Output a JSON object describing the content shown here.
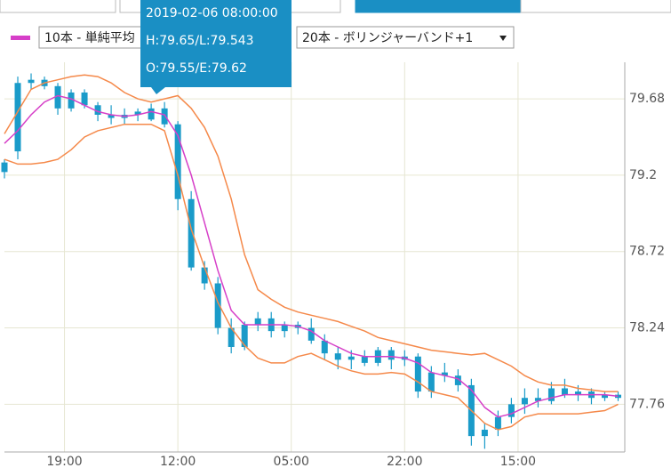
{
  "chart_data": {
    "type": "candlestick",
    "x": [
      0,
      2,
      4,
      6,
      8,
      10,
      12,
      14,
      16,
      18,
      20,
      22,
      24,
      26,
      28,
      30,
      32,
      34,
      36,
      38,
      40,
      42,
      44,
      46,
      48,
      50,
      52,
      54,
      56,
      58,
      60,
      62,
      64,
      66,
      68,
      70,
      72,
      74,
      76,
      78,
      80,
      82,
      84,
      86,
      88,
      90,
      92
    ],
    "xlim": [
      0,
      93
    ],
    "xticks": [
      {
        "value": 9,
        "label": "19:00"
      },
      {
        "value": 26,
        "label": "12:00"
      },
      {
        "value": 43,
        "label": "05:00"
      },
      {
        "value": 60,
        "label": "22:00"
      },
      {
        "value": 77,
        "label": "15:00"
      }
    ],
    "ylim": [
      77.46,
      79.91
    ],
    "yticks": [
      79.68,
      79.2,
      78.72,
      78.24,
      77.76
    ],
    "grid": true,
    "candle_color": "#1a9bc9",
    "open": [
      79.22,
      79.35,
      79.78,
      79.8,
      79.76,
      79.62,
      79.72,
      79.64,
      79.58,
      79.56,
      79.58,
      79.55,
      79.62,
      79.52,
      79.05,
      78.62,
      78.52,
      78.24,
      78.12,
      78.26,
      78.3,
      78.22,
      78.26,
      78.24,
      78.16,
      78.08,
      78.04,
      78.06,
      78.02,
      78.1,
      78.04,
      78.06,
      77.84,
      77.96,
      77.94,
      77.88,
      77.56,
      77.6,
      77.68,
      77.76,
      77.8,
      77.78,
      77.86,
      77.82,
      77.84,
      77.8,
      77.82
    ],
    "high": [
      79.3,
      79.82,
      79.84,
      79.82,
      79.78,
      79.74,
      79.74,
      79.66,
      79.64,
      79.62,
      79.62,
      79.65,
      79.66,
      79.54,
      79.1,
      78.66,
      78.56,
      78.3,
      78.28,
      78.34,
      78.34,
      78.28,
      78.28,
      78.3,
      78.2,
      78.12,
      78.1,
      78.1,
      78.12,
      78.12,
      78.1,
      78.08,
      78.0,
      78.02,
      77.98,
      77.92,
      77.64,
      77.72,
      77.8,
      77.86,
      77.86,
      77.9,
      77.92,
      77.88,
      77.86,
      77.84,
      77.84
    ],
    "low": [
      79.18,
      79.3,
      79.74,
      79.74,
      79.58,
      79.6,
      79.62,
      79.54,
      79.52,
      79.52,
      79.54,
      79.54,
      79.5,
      78.98,
      78.6,
      78.48,
      78.2,
      78.08,
      78.1,
      78.22,
      78.18,
      78.18,
      78.2,
      78.14,
      78.04,
      77.98,
      77.98,
      78.0,
      78.0,
      77.98,
      78.0,
      77.8,
      77.8,
      77.9,
      77.84,
      77.5,
      77.48,
      77.56,
      77.64,
      77.7,
      77.74,
      77.76,
      77.8,
      77.78,
      77.76,
      77.78,
      77.78
    ],
    "close": [
      79.28,
      79.78,
      79.8,
      79.76,
      79.62,
      79.72,
      79.64,
      79.58,
      79.56,
      79.58,
      79.6,
      79.62,
      79.52,
      79.05,
      78.62,
      78.52,
      78.24,
      78.12,
      78.26,
      78.3,
      78.22,
      78.26,
      78.24,
      78.16,
      78.08,
      78.04,
      78.06,
      78.02,
      78.1,
      78.04,
      78.06,
      77.84,
      77.96,
      77.94,
      77.88,
      77.56,
      77.6,
      77.68,
      77.76,
      77.8,
      77.78,
      77.86,
      77.82,
      77.84,
      77.8,
      77.82,
      77.8
    ],
    "series": [
      {
        "name": "10本 - 単純平均",
        "color": "#d63fc8",
        "values": [
          79.4,
          79.48,
          79.58,
          79.66,
          79.7,
          79.68,
          79.64,
          79.6,
          79.58,
          79.57,
          79.58,
          79.6,
          79.58,
          79.45,
          79.2,
          78.9,
          78.6,
          78.35,
          78.26,
          78.26,
          78.26,
          78.26,
          78.25,
          78.22,
          78.16,
          78.12,
          78.08,
          78.06,
          78.06,
          78.06,
          78.05,
          78.02,
          77.96,
          77.94,
          77.92,
          77.85,
          77.74,
          77.68,
          77.7,
          77.74,
          77.78,
          77.8,
          77.82,
          77.82,
          77.82,
          77.82,
          77.81
        ]
      },
      {
        "name": "20本 - ボリンジャーバンド+1",
        "color": "#f5894a",
        "upper": [
          79.46,
          79.6,
          79.74,
          79.78,
          79.8,
          79.82,
          79.83,
          79.82,
          79.78,
          79.72,
          79.68,
          79.66,
          79.68,
          79.7,
          79.62,
          79.5,
          79.32,
          79.05,
          78.7,
          78.48,
          78.42,
          78.37,
          78.34,
          78.32,
          78.3,
          78.28,
          78.25,
          78.22,
          78.18,
          78.16,
          78.14,
          78.12,
          78.1,
          78.09,
          78.08,
          78.07,
          78.08,
          78.04,
          78.0,
          77.94,
          77.9,
          77.88,
          77.88,
          77.86,
          77.85,
          77.84,
          77.84
        ],
        "lower": [
          79.3,
          79.27,
          79.27,
          79.28,
          79.3,
          79.36,
          79.44,
          79.48,
          79.5,
          79.52,
          79.52,
          79.52,
          79.48,
          79.2,
          78.86,
          78.62,
          78.4,
          78.24,
          78.13,
          78.05,
          78.02,
          78.02,
          78.06,
          78.08,
          78.04,
          78.0,
          77.97,
          77.95,
          77.95,
          77.96,
          77.95,
          77.9,
          77.84,
          77.82,
          77.8,
          77.72,
          77.64,
          77.6,
          77.62,
          77.68,
          77.7,
          77.7,
          77.7,
          77.7,
          77.71,
          77.72,
          77.76
        ]
      }
    ],
    "tooltip": {
      "time": "2019-02-06 08:00:00",
      "high_low": "H:79.65/L:79.543",
      "open_end": "O:79.55/E:79.62"
    }
  }
}
